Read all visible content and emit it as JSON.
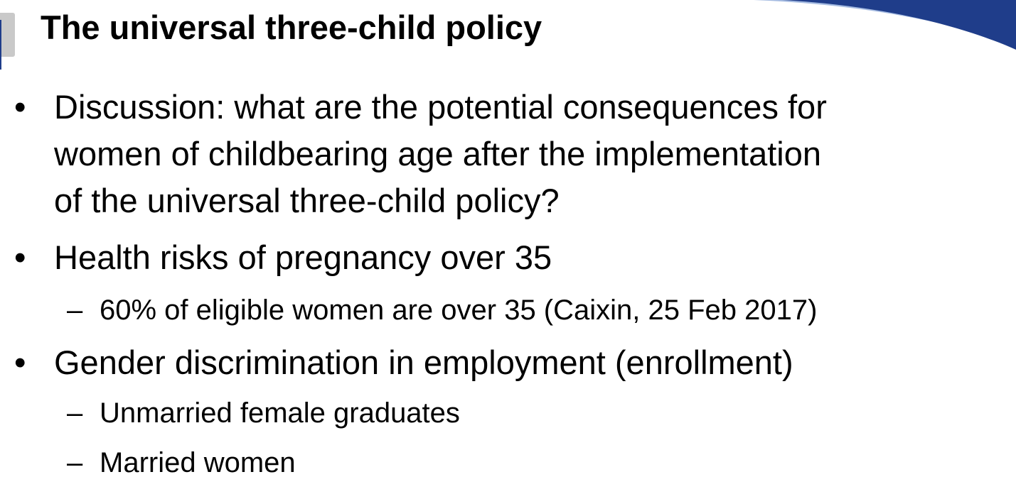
{
  "slide": {
    "title": "The universal three-child policy",
    "bullets": [
      {
        "marker": "•",
        "lines": [
          "Discussion: what are the potential consequences for",
          "women of childbearing age after the implementation",
          "of the universal three-child policy?"
        ]
      },
      {
        "marker": "•",
        "lines": [
          "Health risks of pregnancy over 35"
        ],
        "subitems": [
          {
            "marker": "–",
            "text": "60% of eligible women are over 35 (Caixin, 25 Feb 2017)"
          }
        ]
      },
      {
        "marker": "•",
        "lines": [
          "Gender discrimination in employment (enrollment)"
        ],
        "subitems": [
          {
            "marker": "–",
            "text": "Unmarried female graduates"
          },
          {
            "marker": "–",
            "text": "Married women"
          }
        ]
      }
    ]
  },
  "colors": {
    "accent_blue": "#1f3d8a",
    "light_blue": "#5b84c8",
    "tab_gray": "#c9c9c9",
    "text": "#000000",
    "background": "#ffffff"
  }
}
